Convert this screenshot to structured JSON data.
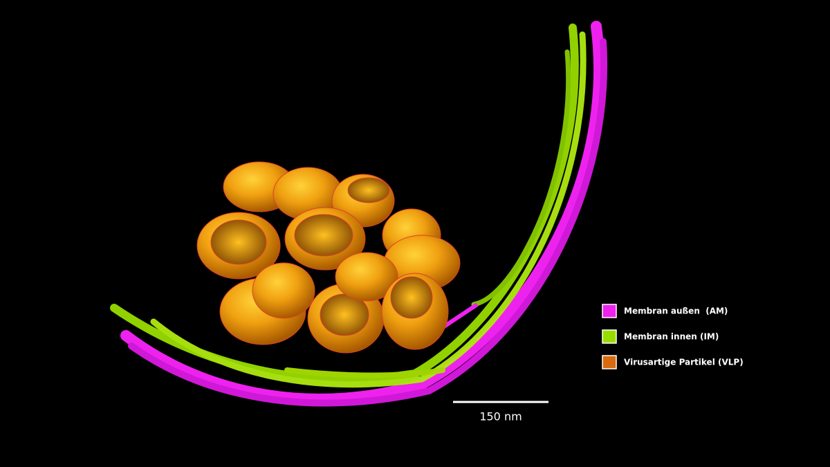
{
  "legend": {
    "items": [
      {
        "label": "Membran außen  (AM)"
      },
      {
        "label": "Membran innen (IM)"
      },
      {
        "label": "Virusartige Partikel (VLP)"
      }
    ]
  },
  "scale_bar": {
    "label": "150 nm"
  }
}
